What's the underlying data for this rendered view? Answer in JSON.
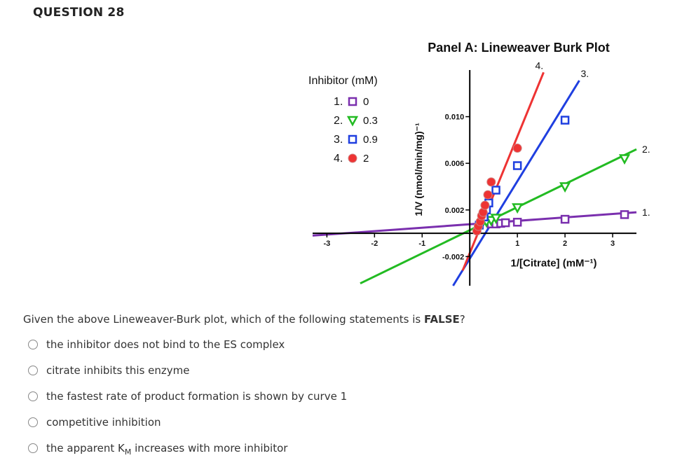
{
  "question": {
    "number_label": "QUESTION 28",
    "prompt_before": "Given the above Lineweaver-Burk plot, which of the following statements is ",
    "prompt_emphasis": "FALSE",
    "prompt_after": "?"
  },
  "options": [
    {
      "text": "the inhibitor does not bind to the ES complex"
    },
    {
      "text": "citrate inhibits this enzyme"
    },
    {
      "text": "the fastest rate of product formation is shown by curve 1"
    },
    {
      "text": "competitive inhibition"
    },
    {
      "text_before": "the apparent K",
      "text_sub": "M",
      "text_after": " increases with more inhibitor"
    }
  ],
  "chart_data": {
    "type": "line",
    "title": "Panel A: Lineweaver Burk Plot",
    "xlabel": "1/[Citrate] (mM⁻¹)",
    "ylabel": "1/V (nmol/min/mg)⁻¹",
    "legend": {
      "title": "Inhibitor (mM)",
      "entries": [
        {
          "num": "1.",
          "value": "0",
          "marker": "square",
          "color": "#7a2fae"
        },
        {
          "num": "2.",
          "value": "0.3",
          "marker": "triangle",
          "color": "#22bb22"
        },
        {
          "num": "3.",
          "value": "0.9",
          "marker": "square",
          "color": "#1f3fe0"
        },
        {
          "num": "4.",
          "value": "2",
          "marker": "circle",
          "color": "#ee3333"
        }
      ],
      "placement": "left"
    },
    "xlim": [
      -3.3,
      3.5
    ],
    "ylim": [
      -0.0045,
      0.014
    ],
    "x_ticks": [
      -3,
      -2,
      -1,
      1,
      2,
      3
    ],
    "y_ticks": [
      -0.002,
      0.002,
      0.006,
      0.01
    ],
    "x_tick_labels": [
      "-3",
      "-2",
      "-1",
      "1",
      "2",
      "3"
    ],
    "y_tick_labels": [
      "-0.002",
      "0.002",
      "0.006",
      "0.010"
    ],
    "series": [
      {
        "name": "1.",
        "color": "#7a2fae",
        "marker": "square",
        "color_marker_fill": "#ffffff",
        "line": {
          "x0": -3.3,
          "y0": -0.0002,
          "x1": 3.5,
          "y1": 0.0018
        },
        "points": [
          [
            0.45,
            0.0008
          ],
          [
            0.55,
            0.0008
          ],
          [
            0.65,
            0.00085
          ],
          [
            0.75,
            0.0009
          ],
          [
            1.0,
            0.00095
          ],
          [
            2.0,
            0.0012
          ],
          [
            3.25,
            0.0016
          ]
        ]
      },
      {
        "name": "2.",
        "color": "#22bb22",
        "marker": "triangle",
        "line": {
          "x0": -2.3,
          "y0": -0.0043,
          "x1": 3.5,
          "y1": 0.0072
        },
        "points": [
          [
            0.25,
            0.0008
          ],
          [
            0.35,
            0.001
          ],
          [
            0.45,
            0.0011
          ],
          [
            0.55,
            0.0013
          ],
          [
            1.0,
            0.0022
          ],
          [
            2.0,
            0.004
          ],
          [
            3.25,
            0.0064
          ]
        ]
      },
      {
        "name": "3.",
        "color": "#1f3fe0",
        "marker": "square",
        "line": {
          "x0": -0.35,
          "y0": -0.0045,
          "x1": 2.3,
          "y1": 0.0131
        },
        "points": [
          [
            0.2,
            0.0007
          ],
          [
            0.3,
            0.0014
          ],
          [
            0.35,
            0.002
          ],
          [
            0.4,
            0.0026
          ],
          [
            0.55,
            0.0037
          ],
          [
            1.0,
            0.0058
          ],
          [
            2.0,
            0.0097
          ]
        ]
      },
      {
        "name": "4.",
        "color": "#ee3333",
        "marker": "circle",
        "line": {
          "x0": -0.15,
          "y0": -0.0032,
          "x1": 1.55,
          "y1": 0.0138
        },
        "points": [
          [
            0.15,
            0.0002
          ],
          [
            0.18,
            0.0006
          ],
          [
            0.22,
            0.001
          ],
          [
            0.25,
            0.0015
          ],
          [
            0.28,
            0.0018
          ],
          [
            0.32,
            0.0024
          ],
          [
            0.38,
            0.0033
          ],
          [
            0.45,
            0.0044
          ],
          [
            1.0,
            0.0073
          ]
        ]
      }
    ],
    "curve_labels": [
      {
        "text": "4.",
        "series": 3
      },
      {
        "text": "3.",
        "series": 2
      },
      {
        "text": "2.",
        "series": 1
      },
      {
        "text": "1.",
        "series": 0
      }
    ]
  }
}
